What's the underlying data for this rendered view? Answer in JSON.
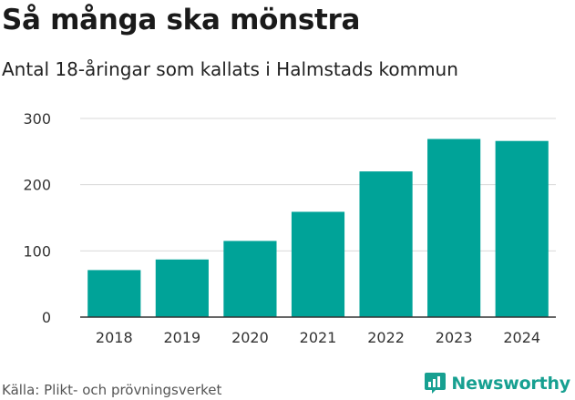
{
  "title": "Så många ska mönstra",
  "subtitle": "Antal 18-åringar som kallats i Halmstads kommun",
  "source": "Källa: Plikt- och prövningsverket",
  "brand": {
    "name": "Newsworthy",
    "icon": "newsworthy-chart-icon",
    "color": "#17a091"
  },
  "colors": {
    "bar": "#00a398",
    "grid": "#d9d9d9",
    "axis": "#333333"
  },
  "chart_data": {
    "type": "bar",
    "title": "Så många ska mönstra",
    "subtitle": "Antal 18-åringar som kallats i Halmstads kommun",
    "xlabel": "",
    "ylabel": "",
    "categories": [
      "2018",
      "2019",
      "2020",
      "2021",
      "2022",
      "2023",
      "2024"
    ],
    "values": [
      71,
      87,
      115,
      159,
      220,
      269,
      266
    ],
    "ylim": [
      0,
      300
    ],
    "yticks": [
      0,
      100,
      200,
      300
    ],
    "grid": true,
    "legend": "none"
  }
}
